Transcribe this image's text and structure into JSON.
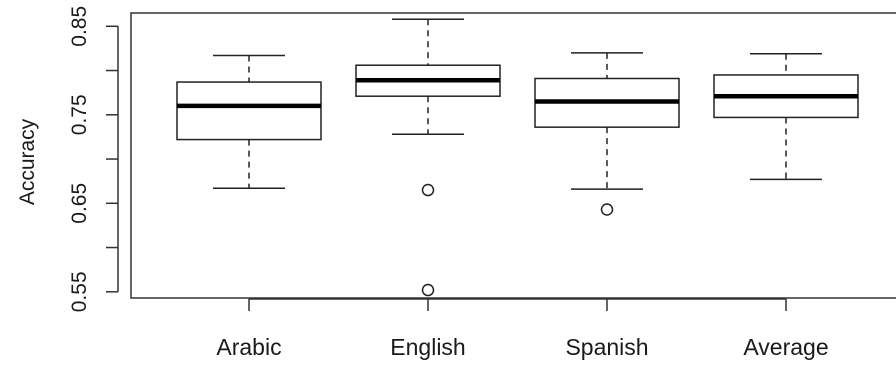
{
  "chart_data": {
    "type": "box",
    "title": "",
    "xlabel": "",
    "ylabel": "Accuracy",
    "ylim": [
      0.543,
      0.865
    ],
    "y_ticks": [
      {
        "value": 0.55,
        "label": "0.55"
      },
      {
        "value": 0.6,
        "label": ""
      },
      {
        "value": 0.65,
        "label": "0.65"
      },
      {
        "value": 0.7,
        "label": ""
      },
      {
        "value": 0.75,
        "label": "0.75"
      },
      {
        "value": 0.8,
        "label": ""
      },
      {
        "value": 0.85,
        "label": "0.85"
      }
    ],
    "categories": [
      "Arabic",
      "English",
      "Spanish",
      "Average"
    ],
    "boxes": [
      {
        "name": "Arabic",
        "whisker_low": 0.667,
        "q1": 0.722,
        "median": 0.76,
        "q3": 0.787,
        "whisker_high": 0.817,
        "outliers": []
      },
      {
        "name": "English",
        "whisker_low": 0.728,
        "q1": 0.771,
        "median": 0.789,
        "q3": 0.806,
        "whisker_high": 0.858,
        "outliers": [
          0.665,
          0.552
        ]
      },
      {
        "name": "Spanish",
        "whisker_low": 0.666,
        "q1": 0.736,
        "median": 0.765,
        "q3": 0.791,
        "whisker_high": 0.82,
        "outliers": [
          0.643
        ]
      },
      {
        "name": "Average",
        "whisker_low": 0.677,
        "q1": 0.747,
        "median": 0.771,
        "q3": 0.795,
        "whisker_high": 0.819,
        "outliers": []
      }
    ],
    "grid": false,
    "legend": "none"
  }
}
